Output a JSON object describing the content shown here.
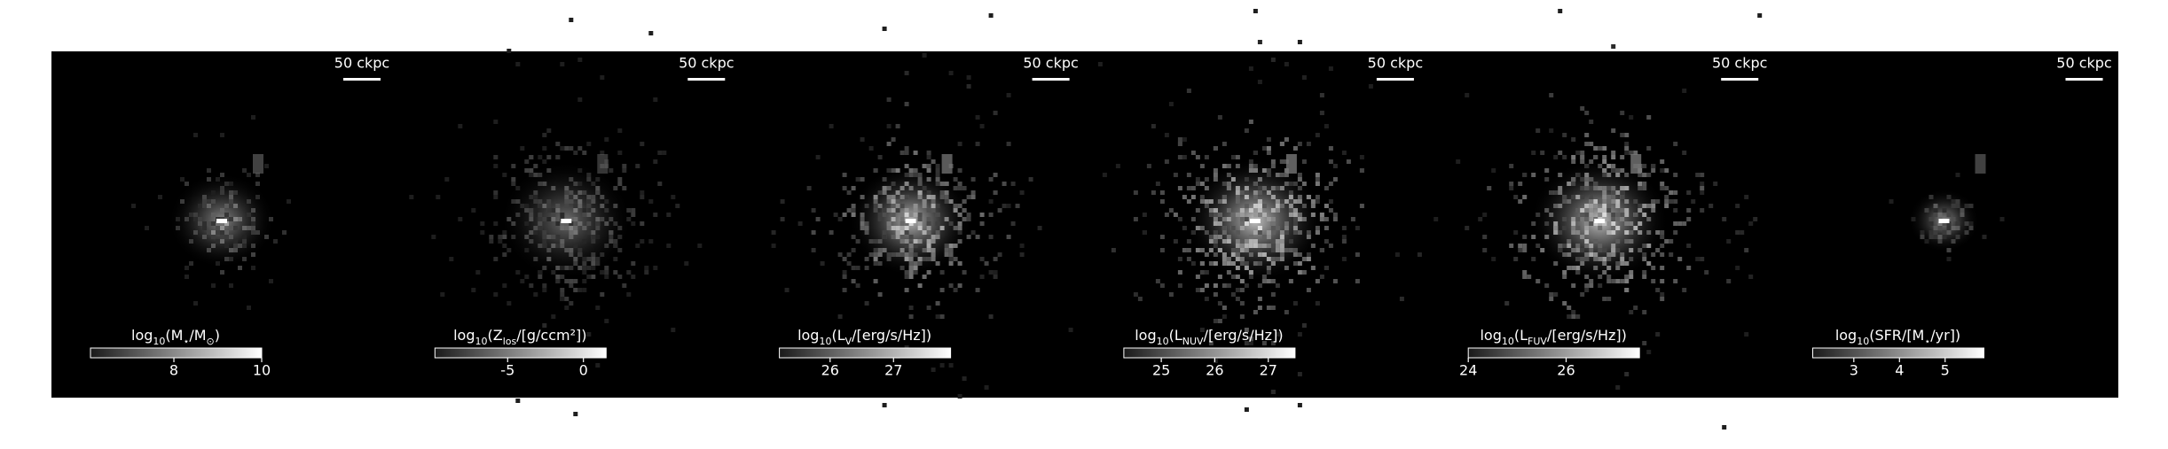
{
  "chart_data": [
    {
      "type": "image",
      "scalebar": "50 ckpc",
      "colorbar_label": [
        "log",
        "10",
        "(M",
        "⋆",
        "/M",
        "⊙",
        ")"
      ],
      "xlim": [
        6.1,
        10
      ],
      "xticks": [
        8,
        10
      ]
    },
    {
      "type": "image",
      "scalebar": "50 ckpc",
      "colorbar_label": [
        "log",
        "10",
        "(Z",
        "los",
        "/[g/ccm²])"
      ],
      "xlim": [
        -9.8,
        1.5
      ],
      "xticks": [
        -5,
        0
      ]
    },
    {
      "type": "image",
      "scalebar": "50 ckpc",
      "colorbar_label": [
        "log",
        "10",
        "(L",
        "V",
        "/[erg/s/Hz])"
      ],
      "xlim": [
        25.2,
        27.9
      ],
      "xticks": [
        26,
        27
      ]
    },
    {
      "type": "image",
      "scalebar": "50 ckpc",
      "colorbar_label": [
        "log",
        "10",
        "(L",
        "NUV",
        "/[erg/s/Hz])"
      ],
      "xlim": [
        24.3,
        27.5
      ],
      "xticks": [
        25,
        26,
        27
      ]
    },
    {
      "type": "image",
      "scalebar": "50 ckpc",
      "colorbar_label": [
        "log",
        "10",
        "(L",
        "FUV",
        "/[erg/s/Hz])"
      ],
      "xlim": [
        24,
        27.5
      ],
      "xticks": [
        24,
        26
      ]
    },
    {
      "type": "image",
      "scalebar": "50 ckpc",
      "colorbar_label": [
        "log",
        "10",
        "(SFR/[M",
        "⋆",
        "/yr])"
      ],
      "xlim": [
        2.1,
        5.85
      ],
      "xticks": [
        3,
        4,
        5
      ]
    }
  ]
}
